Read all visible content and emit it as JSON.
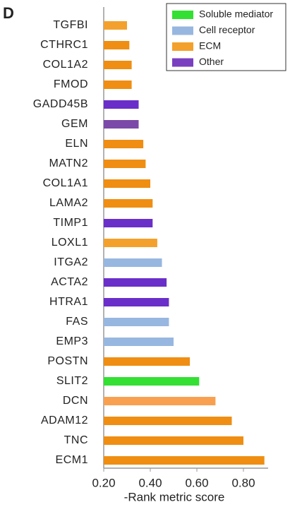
{
  "panel_label": "D",
  "chart_data": {
    "type": "barh",
    "categories": [
      "TGFBI",
      "CTHRC1",
      "COL1A2",
      "FMOD",
      "GADD45B",
      "GEM",
      "ELN",
      "MATN2",
      "COL1A1",
      "LAMA2",
      "TIMP1",
      "LOXL1",
      "ITGA2",
      "ACTA2",
      "HTRA1",
      "FAS",
      "EMP3",
      "POSTN",
      "SLIT2",
      "DCN",
      "ADAM12",
      "TNC",
      "ECM1"
    ],
    "values": [
      0.3,
      0.31,
      0.32,
      0.32,
      0.35,
      0.35,
      0.37,
      0.38,
      0.4,
      0.41,
      0.41,
      0.43,
      0.45,
      0.47,
      0.48,
      0.48,
      0.5,
      0.57,
      0.61,
      0.68,
      0.75,
      0.8,
      0.89
    ],
    "colors": [
      "#f3a12c",
      "#ef8e12",
      "#ef8e12",
      "#ef8e12",
      "#6a2fc9",
      "#7b49a8",
      "#ef8e12",
      "#ef8e12",
      "#ef8e12",
      "#ef8e12",
      "#6a2fc9",
      "#f3a12c",
      "#97b7e0",
      "#6a2fc9",
      "#6a2fc9",
      "#97b7e0",
      "#97b7e0",
      "#ef8e12",
      "#33e033",
      "#f8a050",
      "#ef8e12",
      "#ef8e12",
      "#ef8e12"
    ],
    "legend": [
      {
        "name": "Soluble mediator",
        "color": "#33e033"
      },
      {
        "name": "Cell receptor",
        "color": "#97b7e0"
      },
      {
        "name": "ECM",
        "color": "#f3a12c"
      },
      {
        "name": "Other",
        "color": "#7a3fc0"
      }
    ],
    "legend_position": "upper right",
    "xlabel": "-Rank metric score",
    "xlim": [
      0.2,
      0.9
    ],
    "xticks": [
      {
        "value": 0.2,
        "label": "0.20"
      },
      {
        "value": 0.4,
        "label": "0.40"
      },
      {
        "value": 0.6,
        "label": "0.60"
      },
      {
        "value": 0.8,
        "label": "0.80"
      }
    ]
  }
}
